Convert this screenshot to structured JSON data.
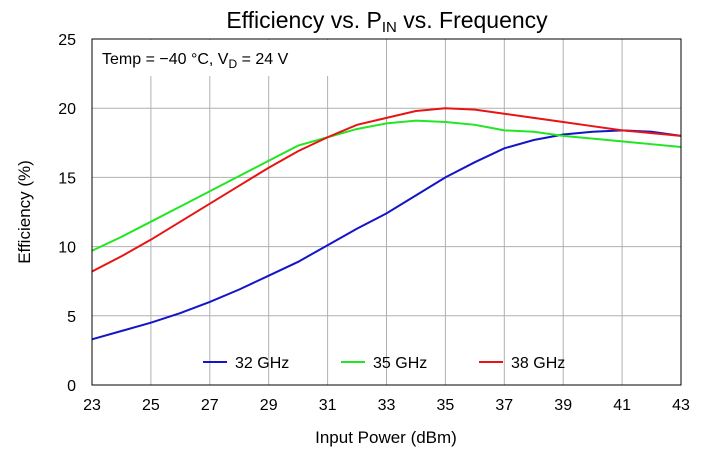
{
  "chart_data": {
    "type": "line",
    "title": {
      "before": "Efficiency vs. P",
      "subscript": "IN",
      "after": " vs. Frequency"
    },
    "annotation": {
      "before": "Temp = −40 °C, V",
      "subscript": "D",
      "after": " = 24 V"
    },
    "x_label": "Input Power (dBm)",
    "y_label": "Efficiency (%)",
    "x": [
      23,
      24,
      25,
      26,
      27,
      28,
      29,
      30,
      31,
      32,
      33,
      34,
      35,
      36,
      37,
      38,
      39,
      40,
      41,
      42,
      43
    ],
    "series": [
      {
        "name": "32 GHz",
        "color": "#1414c8",
        "values": [
          3.3,
          3.9,
          4.5,
          5.2,
          6.0,
          6.9,
          7.9,
          8.9,
          10.1,
          11.3,
          12.4,
          13.7,
          15.0,
          16.1,
          17.1,
          17.7,
          18.1,
          18.3,
          18.4,
          18.3,
          18.0
        ]
      },
      {
        "name": "35 GHz",
        "color": "#22e622",
        "values": [
          9.7,
          10.7,
          11.8,
          12.9,
          14.0,
          15.1,
          16.2,
          17.3,
          17.9,
          18.5,
          18.9,
          19.1,
          19.0,
          18.8,
          18.4,
          18.3,
          18.0,
          17.8,
          17.6,
          17.4,
          17.2
        ]
      },
      {
        "name": "38 GHz",
        "color": "#e81414",
        "values": [
          8.2,
          9.3,
          10.5,
          11.8,
          13.1,
          14.4,
          15.7,
          16.9,
          17.9,
          18.8,
          19.3,
          19.8,
          20.0,
          19.9,
          19.6,
          19.3,
          19.0,
          18.7,
          18.4,
          18.2,
          18.0
        ]
      }
    ],
    "xlim": [
      23,
      43
    ],
    "xticks": [
      23,
      25,
      27,
      29,
      31,
      33,
      35,
      37,
      39,
      41,
      43
    ],
    "ylim": [
      0,
      25
    ],
    "yticks": [
      0,
      5,
      10,
      15,
      20,
      25
    ],
    "grid": true,
    "legend": "bottom"
  }
}
